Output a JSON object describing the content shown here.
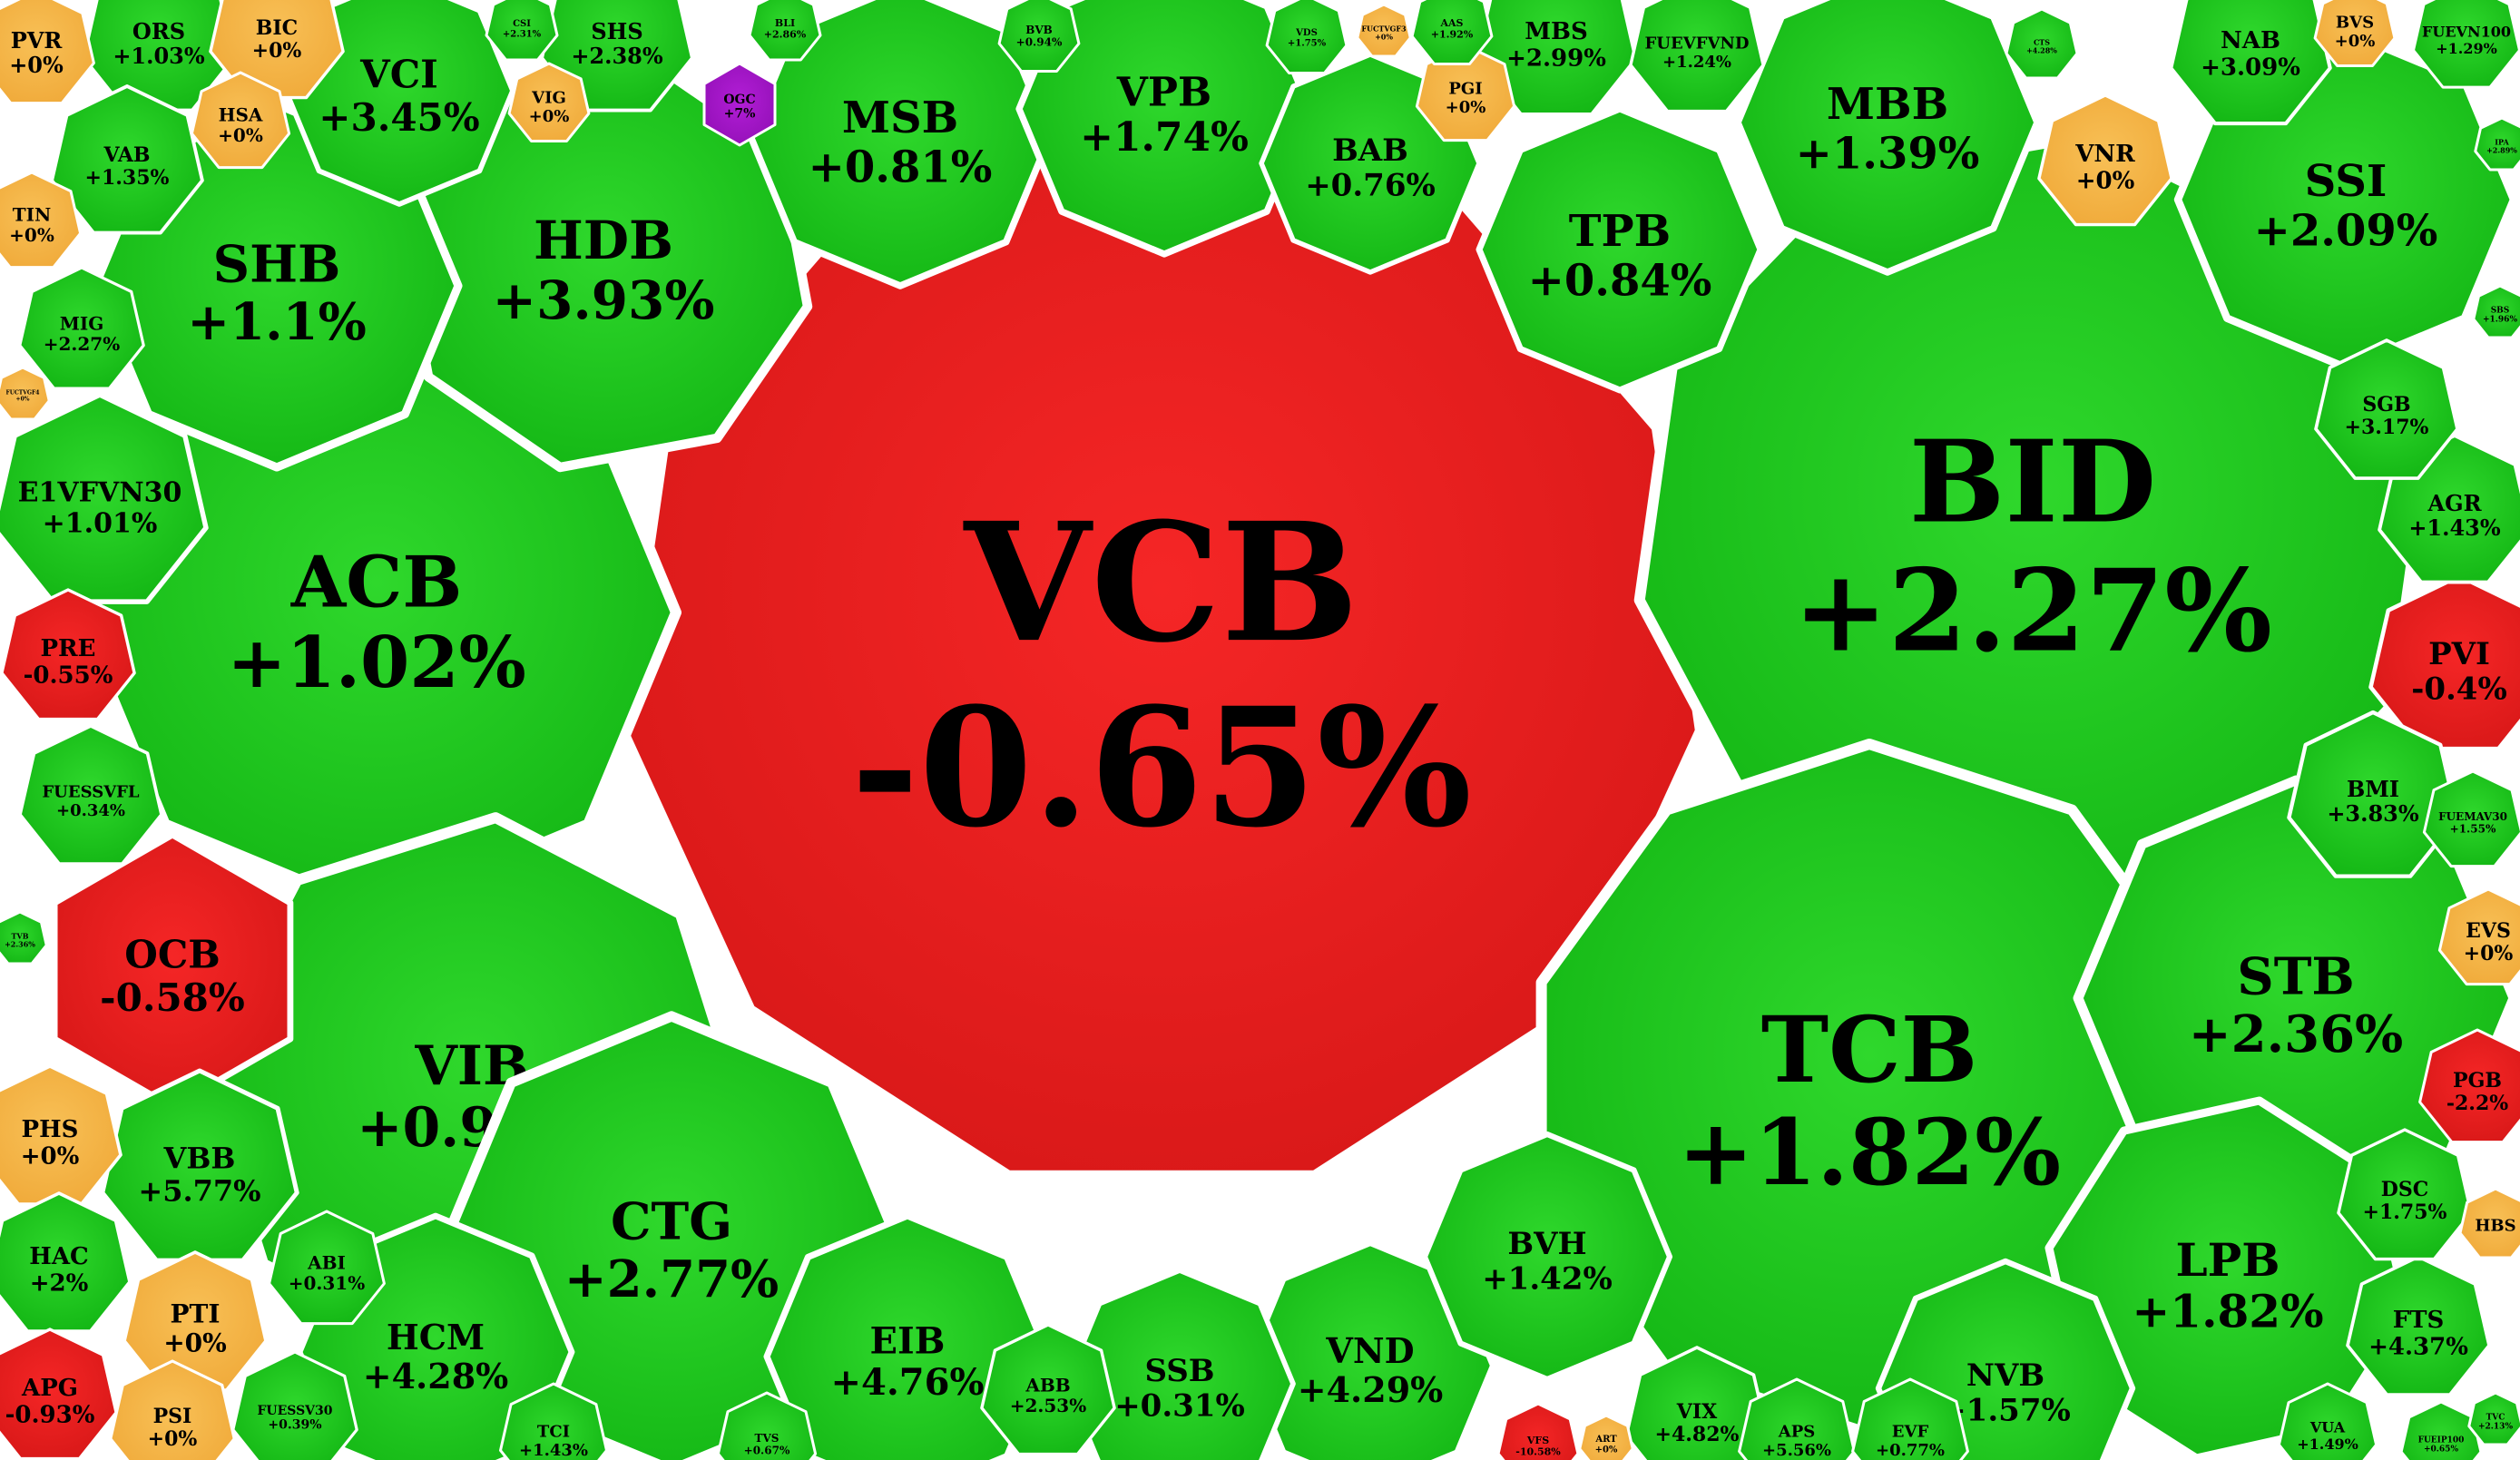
{
  "chart_data": {
    "type": "voronoi-treemap",
    "title": "",
    "colors": {
      "up": "#18c21a",
      "down": "#e01c1c",
      "flat": "#f6b545",
      "ceiling": "#a216c8"
    },
    "cells": [
      {
        "ticker": "VCB",
        "change": "-0.65%",
        "value": -0.65
      },
      {
        "ticker": "BID",
        "change": "+2.27%",
        "value": 2.27
      },
      {
        "ticker": "TCB",
        "change": "+1.82%",
        "value": 1.82
      },
      {
        "ticker": "ACB",
        "change": "+1.02%",
        "value": 1.02
      },
      {
        "ticker": "HDB",
        "change": "+3.93%",
        "value": 3.93
      },
      {
        "ticker": "SHB",
        "change": "+1.1%",
        "value": 1.1
      },
      {
        "ticker": "VIB",
        "change": "+0.97%",
        "value": 0.97
      },
      {
        "ticker": "CTG",
        "change": "+2.77%",
        "value": 2.77
      },
      {
        "ticker": "STB",
        "change": "+2.36%",
        "value": 2.36
      },
      {
        "ticker": "LPB",
        "change": "+1.82%",
        "value": 1.82
      },
      {
        "ticker": "SSI",
        "change": "+2.09%",
        "value": 2.09
      },
      {
        "ticker": "MBB",
        "change": "+1.39%",
        "value": 1.39
      },
      {
        "ticker": "TPB",
        "change": "+0.84%",
        "value": 0.84
      },
      {
        "ticker": "MSB",
        "change": "+0.81%",
        "value": 0.81
      },
      {
        "ticker": "VPB",
        "change": "+1.74%",
        "value": 1.74
      },
      {
        "ticker": "VCI",
        "change": "+3.45%",
        "value": 3.45
      },
      {
        "ticker": "OCB",
        "change": "-0.58%",
        "value": -0.58
      },
      {
        "ticker": "E1VFVN30",
        "change": "+1.01%",
        "value": 1.01
      },
      {
        "ticker": "BAB",
        "change": "+0.76%",
        "value": 0.76
      },
      {
        "ticker": "HCM",
        "change": "+4.28%",
        "value": 4.28
      },
      {
        "ticker": "EIB",
        "change": "+4.76%",
        "value": 4.76
      },
      {
        "ticker": "SSB",
        "change": "+0.31%",
        "value": 0.31
      },
      {
        "ticker": "VND",
        "change": "+4.29%",
        "value": 4.29
      },
      {
        "ticker": "BVH",
        "change": "+1.42%",
        "value": 1.42
      },
      {
        "ticker": "NVB",
        "change": "+1.57%",
        "value": 1.57
      },
      {
        "ticker": "VBB",
        "change": "+5.77%",
        "value": 5.77
      },
      {
        "ticker": "PVI",
        "change": "-0.4%",
        "value": -0.4
      },
      {
        "ticker": "AGR",
        "change": "+1.43%",
        "value": 1.43
      },
      {
        "ticker": "SGB",
        "change": "+3.17%",
        "value": 3.17
      },
      {
        "ticker": "BMI",
        "change": "+3.83%",
        "value": 3.83
      },
      {
        "ticker": "NAB",
        "change": "+3.09%",
        "value": 3.09
      },
      {
        "ticker": "MBS",
        "change": "+2.99%",
        "value": 2.99
      },
      {
        "ticker": "SHS",
        "change": "+2.38%",
        "value": 2.38
      },
      {
        "ticker": "ORS",
        "change": "+1.03%",
        "value": 1.03
      },
      {
        "ticker": "VAB",
        "change": "+1.35%",
        "value": 1.35
      },
      {
        "ticker": "MIG",
        "change": "+2.27%",
        "value": 2.27
      },
      {
        "ticker": "FUESSVFL",
        "change": "+0.34%",
        "value": 0.34
      },
      {
        "ticker": "PRE",
        "change": "-0.55%",
        "value": -0.55
      },
      {
        "ticker": "PHS",
        "change": "+0%",
        "value": 0
      },
      {
        "ticker": "HAC",
        "change": "+2%",
        "value": 2
      },
      {
        "ticker": "APG",
        "change": "-0.93%",
        "value": -0.93
      },
      {
        "ticker": "PTI",
        "change": "+0%",
        "value": 0
      },
      {
        "ticker": "PSI",
        "change": "+0%",
        "value": 0
      },
      {
        "ticker": "ABI",
        "change": "+0.31%",
        "value": 0.31
      },
      {
        "ticker": "FUESSV30",
        "change": "+0.39%",
        "value": 0.39
      },
      {
        "ticker": "TCI",
        "change": "+1.43%",
        "value": 1.43
      },
      {
        "ticker": "ABB",
        "change": "+2.53%",
        "value": 2.53
      },
      {
        "ticker": "VIX",
        "change": "+4.82%",
        "value": 4.82
      },
      {
        "ticker": "APS",
        "change": "+5.56%",
        "value": 5.56
      },
      {
        "ticker": "EVF",
        "change": "+0.77%",
        "value": 0.77
      },
      {
        "ticker": "FTS",
        "change": "+4.37%",
        "value": 4.37
      },
      {
        "ticker": "DSC",
        "change": "+1.75%",
        "value": 1.75
      },
      {
        "ticker": "PGB",
        "change": "-2.2%",
        "value": -2.2
      },
      {
        "ticker": "EVS",
        "change": "+0%",
        "value": 0
      },
      {
        "ticker": "VNR",
        "change": "+0%",
        "value": 0
      },
      {
        "ticker": "PVR",
        "change": "+0%",
        "value": 0
      },
      {
        "ticker": "BIC",
        "change": "+0%",
        "value": 0
      },
      {
        "ticker": "HSA",
        "change": "+0%",
        "value": 0
      },
      {
        "ticker": "VIG",
        "change": "+0%",
        "value": 0
      },
      {
        "ticker": "TIN",
        "change": "+0%",
        "value": 0
      },
      {
        "ticker": "PGI",
        "change": "+0%",
        "value": 0
      },
      {
        "ticker": "BVS",
        "change": "+0%",
        "value": 0
      },
      {
        "ticker": "OGC",
        "change": "+7%",
        "value": 7
      },
      {
        "ticker": "FUEVN100",
        "change": "+1.29%",
        "value": 1.29
      },
      {
        "ticker": "FUEVFVND",
        "change": "+1.24%",
        "value": 1.24
      },
      {
        "ticker": "FUEMAV30",
        "change": "+1.55%",
        "value": 1.55
      },
      {
        "ticker": "VUA",
        "change": "+1.49%",
        "value": 1.49
      },
      {
        "ticker": "TVS",
        "change": "+0.67%",
        "value": 0.67
      },
      {
        "ticker": "HBS",
        "change": "",
        "value": null
      },
      {
        "ticker": "AAS",
        "change": "+1.92%",
        "value": 1.92
      },
      {
        "ticker": "BVB",
        "change": "+0.94%",
        "value": 0.94
      },
      {
        "ticker": "BLI",
        "change": "+2.86%",
        "value": 2.86
      },
      {
        "ticker": "CSI",
        "change": "+2.31%",
        "value": 2.31
      },
      {
        "ticker": "VDS",
        "change": "+1.75%",
        "value": 1.75
      },
      {
        "ticker": "SBS",
        "change": "+1.96%",
        "value": 1.96
      },
      {
        "ticker": "IPA",
        "change": "+2.89%",
        "value": 2.89
      },
      {
        "ticker": "TVB",
        "change": "+2.36%",
        "value": 2.36
      },
      {
        "ticker": "VFS",
        "change": "-10.58%",
        "value": -10.58
      },
      {
        "ticker": "ART",
        "change": "+0%",
        "value": 0
      },
      {
        "ticker": "FUEIP100",
        "change": "+0.65%",
        "value": 0.65
      },
      {
        "ticker": "TVC",
        "change": "+2.13%",
        "value": 2.13
      },
      {
        "ticker": "FUCTVGF3",
        "change": "+0%",
        "value": 0
      },
      {
        "ticker": "FUCTVGF4",
        "change": "+0%",
        "value": 0
      },
      {
        "ticker": "CTS",
        "change": "+4.28%",
        "value": 4.28
      }
    ]
  }
}
